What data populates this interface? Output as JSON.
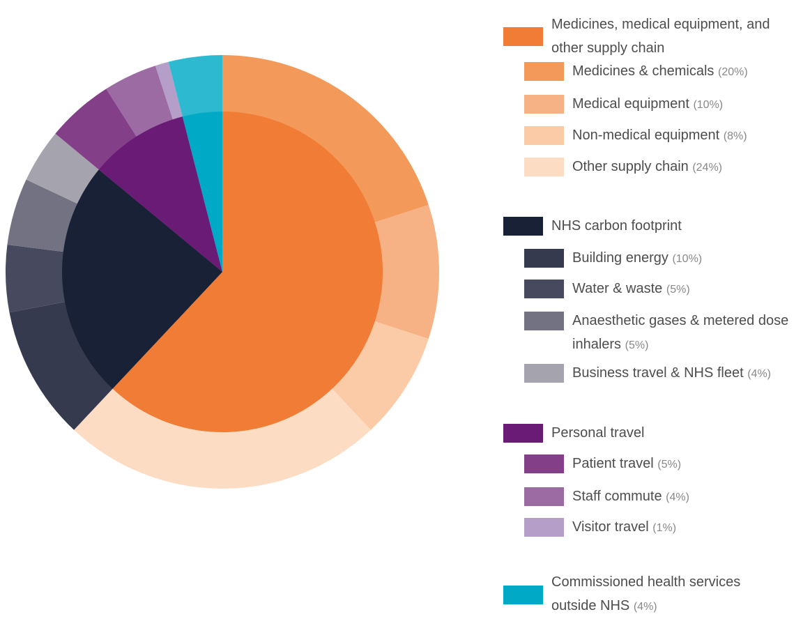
{
  "chart_data": {
    "type": "sunburst",
    "groups": [
      {
        "name": "Medicines, medical equipment, and other supply chain",
        "color": "#f07c35",
        "value": 62,
        "children": [
          {
            "name": "Medicines & chemicals",
            "color": "#f39a5b",
            "value": 20,
            "value_label": "(20%)"
          },
          {
            "name": "Medical equipment",
            "color": "#f6b285",
            "value": 10,
            "value_label": "(10%)"
          },
          {
            "name": "Non-medical equipment",
            "color": "#fbcba8",
            "value": 8,
            "value_label": "(8%)"
          },
          {
            "name": "Other supply chain",
            "color": "#fcdcc3",
            "value": 24,
            "value_label": "(24%)"
          }
        ]
      },
      {
        "name": "NHS carbon footprint",
        "color": "#182135",
        "value": 24,
        "children": [
          {
            "name": "Building energy",
            "color": "#353a4f",
            "value": 10,
            "value_label": "(10%)"
          },
          {
            "name": "Water & waste",
            "color": "#474a5e",
            "value": 5,
            "value_label": "(5%)"
          },
          {
            "name": "Anaesthetic gases & metered dose inhalers",
            "color": "#727282",
            "value": 5,
            "value_label": "(5%)"
          },
          {
            "name": "Business travel & NHS fleet",
            "color": "#a5a4ae",
            "value": 4,
            "value_label": "(4%)"
          }
        ]
      },
      {
        "name": "Personal travel",
        "color": "#6a1b76",
        "value": 10,
        "children": [
          {
            "name": "Patient travel",
            "color": "#834089",
            "value": 5,
            "value_label": "(5%)"
          },
          {
            "name": "Staff commute",
            "color": "#9c6ba4",
            "value": 4,
            "value_label": "(4%)"
          },
          {
            "name": "Visitor travel",
            "color": "#b59ec8",
            "value": 1,
            "value_label": "(1%)"
          }
        ]
      },
      {
        "name": "Commissioned health services outside NHS",
        "color": "#00a9c6",
        "outer_color": "#2db9d0",
        "value": 4,
        "value_label": "(4%)",
        "children": []
      }
    ]
  }
}
